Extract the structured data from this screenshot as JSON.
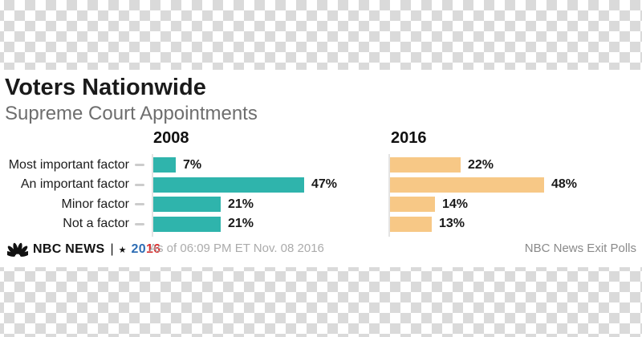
{
  "header": {
    "title": "Voters Nationwide",
    "subtitle": "Supreme Court Appointments"
  },
  "chart_data": {
    "type": "bar",
    "orientation": "horizontal",
    "categories": [
      "Most important factor",
      "An important factor",
      "Minor factor",
      "Not a factor"
    ],
    "series": [
      {
        "name": "2008",
        "color": "#2fb4ac",
        "values": [
          7,
          47,
          21,
          21
        ],
        "value_labels": [
          "7%",
          "47%",
          "21%",
          "21%"
        ]
      },
      {
        "name": "2016",
        "color": "#f7c886",
        "values": [
          22,
          48,
          14,
          13
        ],
        "value_labels": [
          "22%",
          "48%",
          "14%",
          "13%"
        ]
      }
    ],
    "value_unit": "%",
    "xlim": [
      0,
      50
    ],
    "grid": false,
    "legend_position": "column-headers"
  },
  "colors": {
    "teal_2008": "#2fb4ac",
    "orange_2016": "#f7c886",
    "axis_gray": "#e4e4e4",
    "checker_gray": "#dadada",
    "year_20_blue": "#2e6db4",
    "year_16_red": "#da2f2f"
  },
  "footer": {
    "brand_icon": "nbc-peacock",
    "brand_name": "NBC NEWS",
    "separator": "|",
    "star": "★",
    "year_20": "20",
    "year_16": "16",
    "as_of": "As of 06:09 PM ET Nov. 08 2016",
    "source": "NBC News Exit Polls"
  }
}
